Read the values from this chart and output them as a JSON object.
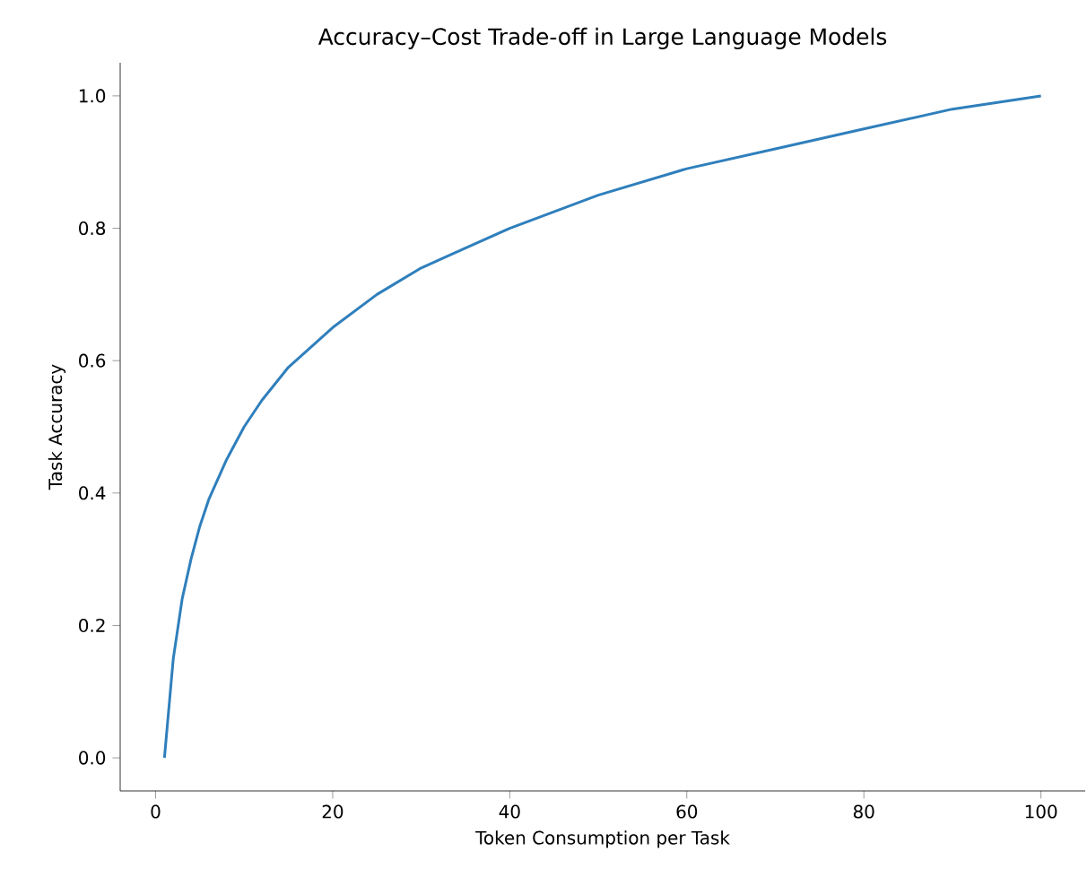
{
  "chart_data": {
    "type": "line",
    "title": "Accuracy–Cost Trade-off in Large Language Models",
    "xlabel": "Token Consumption per Task",
    "ylabel": "Task Accuracy",
    "x": [
      1,
      2,
      3,
      4,
      5,
      6,
      8,
      10,
      12,
      15,
      20,
      25,
      30,
      35,
      40,
      50,
      60,
      70,
      80,
      90,
      100
    ],
    "series": [
      {
        "color": "#2f7fbc",
        "values": [
          0.0,
          0.15,
          0.24,
          0.3,
          0.35,
          0.39,
          0.45,
          0.5,
          0.54,
          0.59,
          0.65,
          0.7,
          0.74,
          0.77,
          0.8,
          0.85,
          0.89,
          0.92,
          0.95,
          0.98,
          1.0
        ]
      }
    ],
    "xlim": [
      -4,
      105
    ],
    "ylim": [
      -0.05,
      1.05
    ],
    "xticks": [
      0,
      20,
      40,
      60,
      80,
      100
    ],
    "yticks": [
      {
        "value": 0,
        "label": "0.0"
      },
      0.2,
      0.4,
      0.6,
      0.8,
      {
        "value": 1,
        "label": "1.0"
      }
    ],
    "grid": false,
    "marker": "none",
    "line_style": "solid"
  }
}
